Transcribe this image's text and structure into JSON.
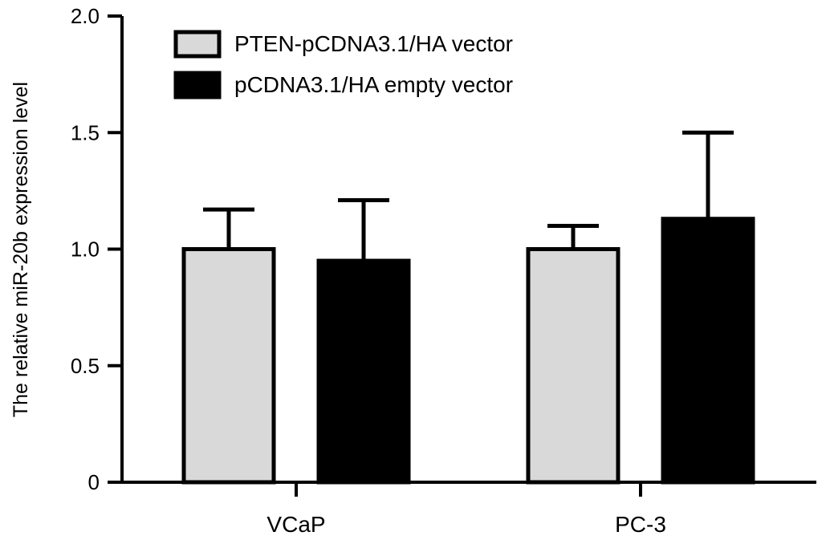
{
  "chart_data": {
    "type": "bar",
    "categories": [
      "VCaP",
      "PC-3"
    ],
    "series": [
      {
        "name": "PTEN-pCDNA3.1/HA vector",
        "color": "#d9d9d9",
        "values": [
          1.0,
          1.0
        ],
        "error": [
          0.17,
          0.1
        ]
      },
      {
        "name": "pCDNA3.1/HA empty vector",
        "color": "#000000",
        "values": [
          0.95,
          1.13
        ],
        "error": [
          0.26,
          0.37
        ]
      }
    ],
    "xlabel": "",
    "ylabel": "The relative miR-20b expression level",
    "ylim": [
      0,
      2.0
    ],
    "yticks": [
      0,
      0.5,
      1.0,
      1.5,
      2.0
    ],
    "ytick_labels": [
      "0",
      "0.5",
      "1.0",
      "1.5",
      "2.0"
    ],
    "legend": "top-left",
    "grid": false
  }
}
